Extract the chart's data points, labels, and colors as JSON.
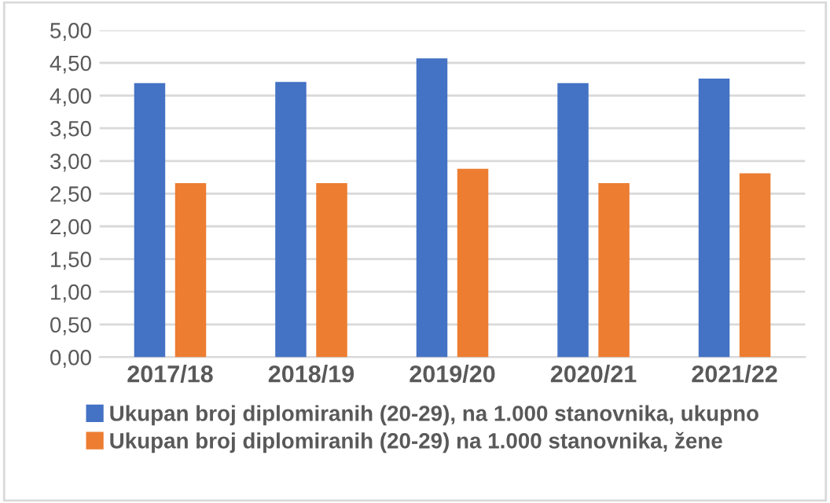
{
  "chart_data": {
    "type": "bar",
    "categories": [
      "2017/18",
      "2018/19",
      "2019/20",
      "2020/21",
      "2021/22"
    ],
    "series": [
      {
        "name": "Ukupan broj diplomiranih (20-29), na 1.000 stanovnika, ukupno",
        "color": "#4472c4",
        "values": [
          4.19,
          4.21,
          4.57,
          4.19,
          4.26
        ]
      },
      {
        "name": "Ukupan broj diplomiranih (20-29) na 1.000 stanovnika, žene",
        "color": "#ed7d31",
        "values": [
          2.66,
          2.66,
          2.88,
          2.66,
          2.81
        ]
      }
    ],
    "ylim": [
      0,
      5
    ],
    "yticks": [
      {
        "value": 0,
        "label": "0,00"
      },
      {
        "value": 0.5,
        "label": "0,50"
      },
      {
        "value": 1,
        "label": "1,00"
      },
      {
        "value": 1.5,
        "label": "1,50"
      },
      {
        "value": 2,
        "label": "2,00"
      },
      {
        "value": 2.5,
        "label": "2,50"
      },
      {
        "value": 3,
        "label": "3,00"
      },
      {
        "value": 3.5,
        "label": "3,50"
      },
      {
        "value": 4,
        "label": "4,00"
      },
      {
        "value": 4.5,
        "label": "4,50"
      },
      {
        "value": 5,
        "label": "5,00"
      }
    ],
    "grid": "y",
    "legend": "bottom"
  }
}
